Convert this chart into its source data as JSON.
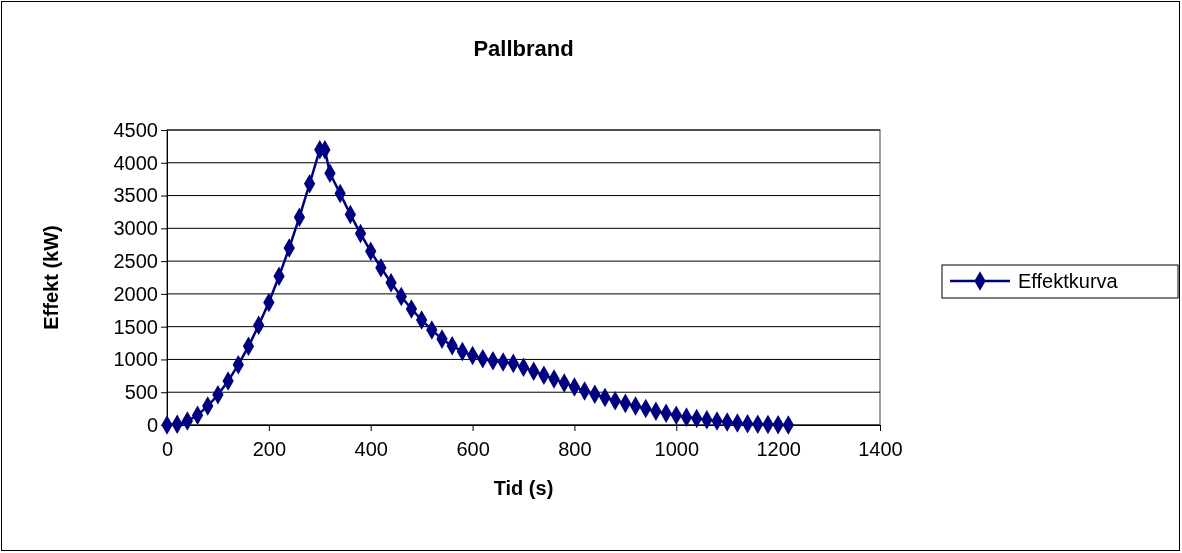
{
  "chart_data": {
    "type": "line",
    "title": "Pallbrand",
    "xlabel": "Tid (s)",
    "ylabel": "Effekt (kW)",
    "x": [
      0,
      20,
      40,
      60,
      80,
      100,
      120,
      140,
      160,
      180,
      200,
      220,
      240,
      260,
      280,
      300,
      310,
      320,
      340,
      360,
      380,
      400,
      420,
      440,
      460,
      480,
      500,
      520,
      540,
      560,
      580,
      600,
      620,
      640,
      660,
      680,
      700,
      720,
      740,
      760,
      780,
      800,
      820,
      840,
      860,
      880,
      900,
      920,
      940,
      960,
      980,
      1000,
      1020,
      1040,
      1060,
      1080,
      1100,
      1120,
      1140,
      1160,
      1180,
      1200,
      1220
    ],
    "series": [
      {
        "name": "Effektkurva",
        "color": "#000080",
        "values": [
          0,
          10,
          60,
          150,
          290,
          460,
          670,
          920,
          1200,
          1520,
          1870,
          2270,
          2700,
          3170,
          3680,
          4200,
          4200,
          3840,
          3530,
          3210,
          2920,
          2650,
          2400,
          2170,
          1960,
          1770,
          1600,
          1450,
          1310,
          1210,
          1120,
          1060,
          1010,
          980,
          960,
          940,
          880,
          820,
          760,
          700,
          640,
          580,
          520,
          470,
          420,
          370,
          330,
          290,
          250,
          210,
          180,
          150,
          120,
          100,
          80,
          60,
          45,
          30,
          20,
          12,
          6,
          3,
          0
        ]
      }
    ],
    "xlim": [
      0,
      1400
    ],
    "xticks": [
      0,
      200,
      400,
      600,
      800,
      1000,
      1200,
      1400
    ],
    "ylim": [
      0,
      4500
    ],
    "yticks": [
      0,
      500,
      1000,
      1500,
      2000,
      2500,
      3000,
      3500,
      4000,
      4500
    ],
    "grid": "y",
    "legend": "right",
    "marker": "diamond",
    "line_style": "solid"
  }
}
